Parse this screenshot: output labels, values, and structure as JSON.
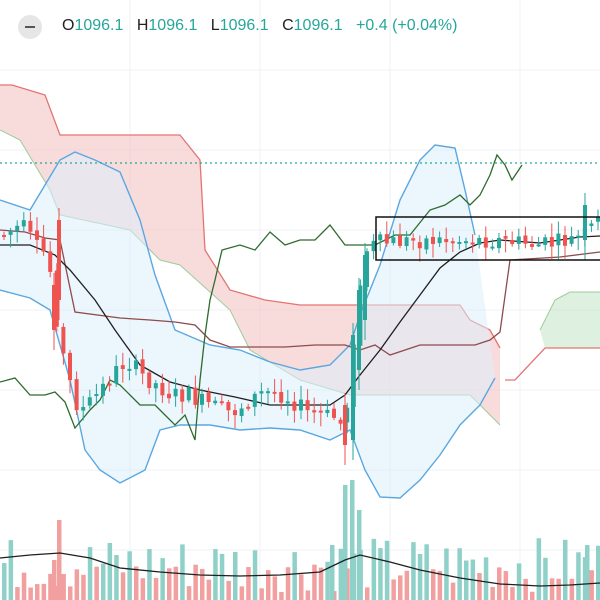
{
  "legend": {
    "open_label": "O",
    "open_value": "1096.1",
    "high_label": "H",
    "high_value": "1096.1",
    "low_label": "L",
    "low_value": "1096.1",
    "close_label": "C",
    "close_value": "1096.1",
    "change": "+0.4 (+0.04%)"
  },
  "colors": {
    "up": "#26a69a",
    "down": "#ef5350",
    "bollinger": "#5aa7e0",
    "kumo_bear": "#f3c0bf",
    "kumo_bull": "#c8e6c9",
    "lagging_span": "#2e6b2e",
    "volume_up": "#8fd1c8",
    "volume_down": "#f2a09f"
  },
  "chart_data": {
    "type": "candlestick",
    "indicators": [
      "Bollinger Bands",
      "Ichimoku Cloud",
      "Volume"
    ],
    "last_price": 1096.1,
    "last_price_line": "dotted",
    "rectangles": 1,
    "grid": true,
    "axes_visible": false
  }
}
